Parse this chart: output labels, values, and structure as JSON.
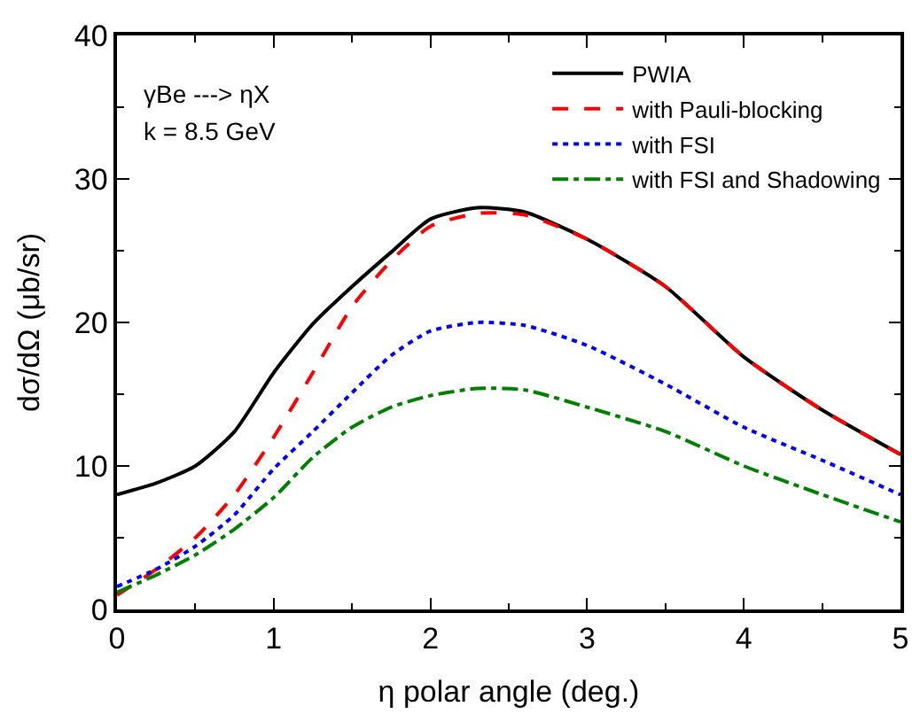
{
  "chart_data": {
    "type": "line",
    "xlabel": "η polar angle (deg.)",
    "ylabel": "dσ/dΩ (μb/sr)",
    "annotations": [
      "γBe ---> ηX",
      "k = 8.5 GeV"
    ],
    "x": [
      0,
      0.25,
      0.5,
      0.75,
      1.0,
      1.25,
      1.5,
      1.75,
      2.0,
      2.3,
      2.6,
      3.0,
      3.5,
      4.0,
      4.5,
      5.0
    ],
    "xlim": [
      0,
      5
    ],
    "xticks": [
      0,
      1,
      2,
      3,
      4,
      5
    ],
    "ylim": [
      0,
      40
    ],
    "yticks": [
      0,
      10,
      20,
      30,
      40
    ],
    "grid": false,
    "legend": "top right",
    "marker": "none",
    "series": [
      {
        "name": "PWIA",
        "color": "#000000",
        "line_style": "solid",
        "values": [
          8.0,
          8.8,
          10.0,
          12.4,
          16.5,
          19.9,
          22.5,
          24.9,
          27.2,
          28.0,
          27.7,
          25.8,
          22.5,
          17.6,
          13.9,
          10.8
        ]
      },
      {
        "name": "with Pauli-blocking",
        "color": "#ff0000",
        "line_style": "dashed",
        "values": [
          1.0,
          2.8,
          5.0,
          8.0,
          12.0,
          16.5,
          21.1,
          24.3,
          26.7,
          27.6,
          27.5,
          25.8,
          22.5,
          17.6,
          13.9,
          10.8
        ]
      },
      {
        "name": "with FSI",
        "color": "#0000ff",
        "line_style": "dotted",
        "values": [
          1.6,
          2.8,
          4.4,
          6.6,
          9.8,
          12.4,
          15.1,
          17.7,
          19.4,
          20.0,
          19.8,
          18.4,
          15.7,
          12.7,
          10.4,
          8.0
        ]
      },
      {
        "name": "with FSI and Shadowing",
        "color": "#008000",
        "line_style": "dashdot",
        "values": [
          1.2,
          2.4,
          3.8,
          5.6,
          7.8,
          10.6,
          12.7,
          14.1,
          14.9,
          15.4,
          15.3,
          14.1,
          12.4,
          10.0,
          8.0,
          6.1
        ]
      }
    ]
  }
}
